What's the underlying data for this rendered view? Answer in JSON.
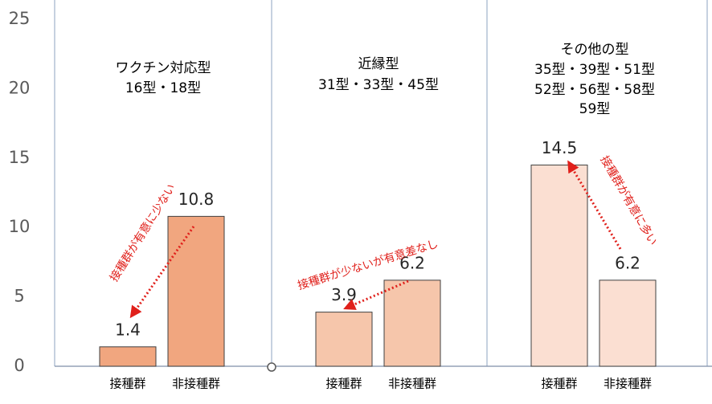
{
  "chart_data": {
    "type": "bar",
    "ylim": [
      0,
      25
    ],
    "yticks": [
      0,
      5,
      10,
      15,
      20,
      25
    ],
    "groups": [
      {
        "title": [
          "ワクチン対応型",
          "16型・18型"
        ],
        "categories": [
          "接種群",
          "非接種群"
        ],
        "values": [
          1.4,
          10.8
        ],
        "color": "#f1a67f",
        "annotation": "接種群が有意に少ない"
      },
      {
        "title": [
          "近縁型",
          "31型・33型・45型"
        ],
        "categories": [
          "接種群",
          "非接種群"
        ],
        "values": [
          3.9,
          6.2
        ],
        "color": "#f6c6ab",
        "annotation": "接種群が少ないが有意差なし"
      },
      {
        "title": [
          "その他の型",
          "35型・39型・51型",
          "52型・56型・58型",
          "59型"
        ],
        "categories": [
          "接種群",
          "非接種群"
        ],
        "values": [
          14.5,
          6.2
        ],
        "color": "#fbdfd2",
        "annotation": "接種群が有意に多い"
      }
    ]
  }
}
